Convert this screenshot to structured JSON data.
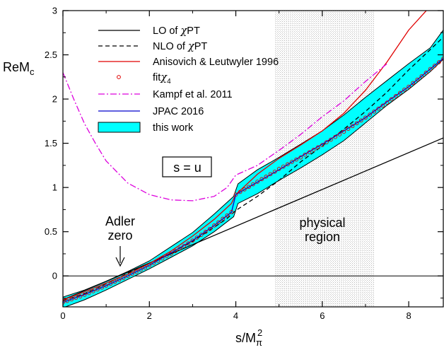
{
  "chart_data": {
    "type": "line",
    "xlabel_main": "s/M",
    "xlabel_sub": "π",
    "xlabel_sup": "2",
    "ylabel_main": "ReM",
    "ylabel_sub": "c",
    "xlim": [
      0,
      8.8
    ],
    "ylim": [
      -0.35,
      3
    ],
    "xticks": [
      "0",
      "2",
      "4",
      "6",
      "8"
    ],
    "yticks": [
      "0",
      "0.5",
      "1",
      "1.5",
      "2",
      "2.5",
      "3"
    ],
    "xtick_values": [
      0,
      2,
      4,
      6,
      8
    ],
    "ytick_values": [
      0,
      0.5,
      1,
      1.5,
      2,
      2.5,
      3
    ],
    "grid": false,
    "legend_position": "top-left",
    "physical_region": [
      4.9,
      7.2
    ],
    "zero_line": 0,
    "series": [
      {
        "name_pre": "LO of ",
        "name_greek": "χ",
        "name_post": "PT",
        "color": "#000000",
        "dash": "solid",
        "kind": "line",
        "x": [
          0,
          8.8
        ],
        "y": [
          -0.27,
          1.56
        ]
      },
      {
        "name_pre": "NLO of ",
        "name_greek": "χ",
        "name_post": "PT",
        "color": "#000000",
        "dash": "dashed",
        "kind": "line",
        "x": [
          0,
          0.5,
          1,
          1.5,
          2,
          2.5,
          3,
          3.5,
          3.8,
          4,
          4.5,
          5,
          5.5,
          6,
          6.5,
          7,
          7.5,
          8,
          8.5,
          8.8
        ],
        "y": [
          -0.28,
          -0.2,
          -0.09,
          0.03,
          0.14,
          0.26,
          0.39,
          0.55,
          0.65,
          0.74,
          0.9,
          1.08,
          1.29,
          1.47,
          1.66,
          1.86,
          2.08,
          2.33,
          2.56,
          2.7
        ]
      },
      {
        "name_pre": "Anisovich & Leutwyler 1996",
        "name_greek": "",
        "name_post": "",
        "color": "#e00000",
        "dash": "solid",
        "kind": "line",
        "x": [
          0,
          0.5,
          1,
          1.5,
          2,
          2.5,
          3,
          3.5,
          3.9,
          4,
          4.5,
          5,
          5.5,
          6,
          6.5,
          7,
          7.5,
          8,
          8.5
        ],
        "y": [
          -0.27,
          -0.18,
          -0.08,
          0.02,
          0.14,
          0.28,
          0.45,
          0.64,
          0.82,
          0.92,
          1.15,
          1.33,
          1.48,
          1.64,
          1.84,
          2.1,
          2.42,
          2.78,
          3.05
        ]
      },
      {
        "name_pre": "fit",
        "name_greek": "χ",
        "name_post": "",
        "name_sub": "4",
        "color": "#e00000",
        "dash": "none",
        "kind": "points",
        "x": [
          0.0,
          0.1,
          0.2,
          0.3,
          0.4,
          0.5,
          0.6,
          0.7,
          0.8,
          0.9,
          1.0,
          1.1,
          1.2,
          1.3,
          1.4,
          1.5,
          1.6,
          1.7,
          1.8,
          1.9,
          2.0,
          2.1,
          2.2,
          2.3,
          2.4,
          2.5,
          2.6,
          2.7,
          2.8,
          2.9,
          3.0,
          3.1,
          3.2,
          3.3,
          3.4,
          3.5,
          3.6,
          3.7,
          3.8,
          3.9,
          4.0,
          4.1,
          4.2,
          4.3,
          4.4,
          4.5,
          4.6,
          4.7,
          4.8,
          4.9,
          5.0,
          5.1,
          5.2,
          5.3,
          5.4,
          5.5,
          5.6,
          5.7,
          5.8,
          5.9,
          6.0,
          6.1,
          6.2,
          6.3,
          6.4,
          6.5,
          6.6,
          6.7,
          6.8,
          6.9,
          7.0,
          7.1,
          7.2,
          7.3,
          7.4,
          7.5,
          7.6,
          7.7,
          7.8,
          7.9,
          8.0,
          8.1,
          8.2,
          8.3,
          8.4,
          8.5,
          8.6,
          8.7,
          8.8
        ],
        "y": [
          -0.3,
          -0.283,
          -0.265,
          -0.248,
          -0.231,
          -0.213,
          -0.194,
          -0.173,
          -0.153,
          -0.132,
          -0.11,
          -0.089,
          -0.067,
          -0.045,
          -0.022,
          0.0,
          0.024,
          0.046,
          0.07,
          0.094,
          0.12,
          0.146,
          0.171,
          0.198,
          0.226,
          0.25,
          0.282,
          0.31,
          0.338,
          0.368,
          0.4,
          0.433,
          0.465,
          0.498,
          0.532,
          0.57,
          0.607,
          0.646,
          0.684,
          0.722,
          0.92,
          0.95,
          0.978,
          1.007,
          1.036,
          1.065,
          1.094,
          1.122,
          1.151,
          1.179,
          1.21,
          1.236,
          1.262,
          1.289,
          1.316,
          1.34,
          1.371,
          1.398,
          1.426,
          1.454,
          1.48,
          1.512,
          1.541,
          1.571,
          1.601,
          1.63,
          1.663,
          1.694,
          1.726,
          1.758,
          1.79,
          1.824,
          1.858,
          1.892,
          1.926,
          1.96,
          1.997,
          2.033,
          2.069,
          2.106,
          2.14,
          2.182,
          2.22,
          2.258,
          2.297,
          2.34,
          2.376,
          2.416,
          2.456
        ]
      },
      {
        "name_pre": "Kampf et al. 2011",
        "name_greek": "",
        "name_post": "",
        "color": "#dd00dd",
        "dash": "dashdot",
        "kind": "line",
        "x": [
          0,
          0.25,
          0.5,
          0.75,
          1,
          1.5,
          2,
          2.5,
          3,
          3.5,
          3.8,
          4,
          4.5,
          5,
          5.5,
          6,
          6.5,
          7,
          7.5
        ],
        "y": [
          2.3,
          2.0,
          1.72,
          1.5,
          1.3,
          1.05,
          0.92,
          0.86,
          0.85,
          0.9,
          1.0,
          1.14,
          1.25,
          1.42,
          1.6,
          1.8,
          1.98,
          2.2,
          2.4
        ]
      },
      {
        "name_pre": "JPAC 2016",
        "name_greek": "",
        "name_post": "",
        "color": "#0000cc",
        "dash": "solid",
        "kind": "line",
        "x": [
          0,
          0.5,
          1,
          1.5,
          2,
          2.5,
          3,
          3.5,
          3.9,
          4,
          4.5,
          5,
          5.5,
          6,
          6.5,
          7,
          7.5,
          8,
          8.5,
          8.8
        ],
        "y": [
          -0.3,
          -0.21,
          -0.11,
          0.0,
          0.12,
          0.26,
          0.4,
          0.57,
          0.72,
          0.92,
          1.06,
          1.2,
          1.35,
          1.49,
          1.64,
          1.79,
          1.97,
          2.14,
          2.34,
          2.46
        ]
      },
      {
        "name_pre": "this work",
        "name_greek": "",
        "name_post": "",
        "color": "#00ffff",
        "dash": "none",
        "kind": "band",
        "x": [
          0,
          0.5,
          1,
          1.5,
          2,
          2.5,
          3,
          3.5,
          3.95,
          4.05,
          4.5,
          5,
          5.5,
          6,
          6.5,
          7,
          7.5,
          8,
          8.5,
          8.8
        ],
        "upper": [
          -0.24,
          -0.16,
          -0.06,
          0.05,
          0.17,
          0.33,
          0.49,
          0.7,
          0.9,
          1.04,
          1.2,
          1.34,
          1.49,
          1.64,
          1.82,
          2.02,
          2.21,
          2.4,
          2.58,
          2.78
        ],
        "lower": [
          -0.36,
          -0.27,
          -0.16,
          -0.04,
          0.08,
          0.21,
          0.34,
          0.5,
          0.67,
          0.82,
          0.93,
          1.08,
          1.22,
          1.37,
          1.53,
          1.73,
          1.93,
          2.11,
          2.31,
          2.45
        ]
      }
    ],
    "annotations": {
      "s_eq_u": "s = u",
      "adler_line1": "Adler",
      "adler_line2": "zero",
      "physical_line1": "physical",
      "physical_line2": "region"
    },
    "adler_x": 1.35
  }
}
